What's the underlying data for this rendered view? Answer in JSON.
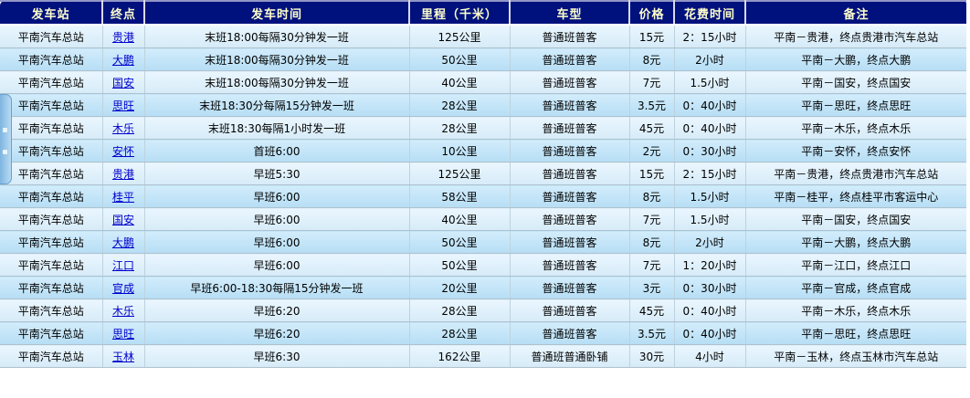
{
  "colors": {
    "header_bg": "#00117d",
    "header_text": "#ffffcc",
    "row_light": "#e2f2fc",
    "row_dark": "#c3e5f8",
    "link": "#0000cc",
    "grid_line": "#aec1cd"
  },
  "table": {
    "columns": [
      {
        "key": "station",
        "label": "发车站"
      },
      {
        "key": "destination",
        "label": "终点"
      },
      {
        "key": "time",
        "label": "发车时间"
      },
      {
        "key": "mileage",
        "label": "里程（千米）"
      },
      {
        "key": "bus_type",
        "label": "车型"
      },
      {
        "key": "price",
        "label": "价格"
      },
      {
        "key": "duration",
        "label": "花费时间"
      },
      {
        "key": "note",
        "label": "备注"
      }
    ],
    "rows": [
      {
        "station": "平南汽车总站",
        "destination": "贵港",
        "time": "末班18:00每隔30分钟发一班",
        "mileage": "125公里",
        "bus_type": "普通班普客",
        "price": "15元",
        "duration": "2：15小时",
        "note": "平南－贵港，终点贵港市汽车总站"
      },
      {
        "station": "平南汽车总站",
        "destination": "大鹏",
        "time": "末班18:00每隔30分钟发一班",
        "mileage": "50公里",
        "bus_type": "普通班普客",
        "price": "8元",
        "duration": "2小时",
        "note": "平南－大鹏，终点大鹏"
      },
      {
        "station": "平南汽车总站",
        "destination": "国安",
        "time": "末班18:00每隔30分钟发一班",
        "mileage": "40公里",
        "bus_type": "普通班普客",
        "price": "7元",
        "duration": "1.5小时",
        "note": "平南－国安，终点国安"
      },
      {
        "station": "平南汽车总站",
        "destination": "思旺",
        "time": "末班18:30分每隔15分钟发一班",
        "mileage": "28公里",
        "bus_type": "普通班普客",
        "price": "3.5元",
        "duration": "0：40小时",
        "note": "平南－思旺，终点思旺"
      },
      {
        "station": "平南汽车总站",
        "destination": "木乐",
        "time": "末班18:30每隔1小时发一班",
        "mileage": "28公里",
        "bus_type": "普通班普客",
        "price": "45元",
        "duration": "0：40小时",
        "note": "平南－木乐，终点木乐"
      },
      {
        "station": "平南汽车总站",
        "destination": "安怀",
        "time": "首班6:00",
        "mileage": "10公里",
        "bus_type": "普通班普客",
        "price": "2元",
        "duration": "0：30小时",
        "note": "平南－安怀，终点安怀"
      },
      {
        "station": "平南汽车总站",
        "destination": "贵港",
        "time": "早班5:30",
        "mileage": "125公里",
        "bus_type": "普通班普客",
        "price": "15元",
        "duration": "2：15小时",
        "note": "平南－贵港，终点贵港市汽车总站"
      },
      {
        "station": "平南汽车总站",
        "destination": "桂平",
        "time": "早班6:00",
        "mileage": "58公里",
        "bus_type": "普通班普客",
        "price": "8元",
        "duration": "1.5小时",
        "note": "平南－桂平，终点桂平市客运中心"
      },
      {
        "station": "平南汽车总站",
        "destination": "国安",
        "time": "早班6:00",
        "mileage": "40公里",
        "bus_type": "普通班普客",
        "price": "7元",
        "duration": "1.5小时",
        "note": "平南－国安，终点国安"
      },
      {
        "station": "平南汽车总站",
        "destination": "大鹏",
        "time": "早班6:00",
        "mileage": "50公里",
        "bus_type": "普通班普客",
        "price": "8元",
        "duration": "2小时",
        "note": "平南－大鹏，终点大鹏"
      },
      {
        "station": "平南汽车总站",
        "destination": "江口",
        "time": "早班6:00",
        "mileage": "50公里",
        "bus_type": "普通班普客",
        "price": "7元",
        "duration": "1：20小时",
        "note": "平南－江口，终点江口"
      },
      {
        "station": "平南汽车总站",
        "destination": "官成",
        "time": "早班6:00-18:30每隔15分钟发一班",
        "mileage": "20公里",
        "bus_type": "普通班普客",
        "price": "3元",
        "duration": "0：30小时",
        "note": "平南－官成，终点官成"
      },
      {
        "station": "平南汽车总站",
        "destination": "木乐",
        "time": "早班6:20",
        "mileage": "28公里",
        "bus_type": "普通班普客",
        "price": "45元",
        "duration": "0：40小时",
        "note": "平南－木乐，终点木乐"
      },
      {
        "station": "平南汽车总站",
        "destination": "思旺",
        "time": "早班6:20",
        "mileage": "28公里",
        "bus_type": "普通班普客",
        "price": "3.5元",
        "duration": "0：40小时",
        "note": "平南－思旺，终点思旺"
      },
      {
        "station": "平南汽车总站",
        "destination": "玉林",
        "time": "早班6:30",
        "mileage": "162公里",
        "bus_type": "普通班普通卧铺",
        "price": "30元",
        "duration": "4小时",
        "note": "平南－玉林，终点玉林市汽车总站"
      }
    ]
  }
}
